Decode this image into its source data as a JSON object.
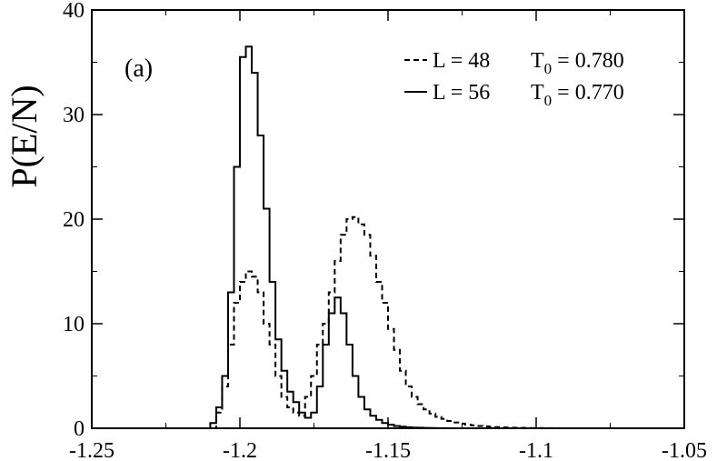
{
  "chart_data": {
    "type": "line",
    "step": true,
    "panel_label": "(a)",
    "ylabel": "P(E/N)",
    "xlabel": "",
    "xlim": [
      -1.25,
      -1.05
    ],
    "ylim": [
      0,
      40
    ],
    "xticks": [
      -1.25,
      -1.2,
      -1.15,
      -1.1,
      -1.05
    ],
    "xtick_labels": [
      "-1.25",
      "-1.2",
      "-1.15",
      "-1.1",
      "-1.05"
    ],
    "yticks": [
      0,
      10,
      20,
      30,
      40
    ],
    "ytick_labels": [
      "0",
      "10",
      "20",
      "30",
      "40"
    ],
    "grid": false,
    "legend_position": "top-right",
    "legend": [
      {
        "L": "L = 48",
        "T_base": "T",
        "T_sub": "0",
        "T_value": " = 0.780",
        "style": "dashed"
      },
      {
        "L": "L = 56",
        "T_base": "T",
        "T_sub": "0",
        "T_value": " = 0.770",
        "style": "solid"
      }
    ],
    "bin_width": 0.002,
    "series": [
      {
        "style": "dashed",
        "x_start": -1.212,
        "values": [
          0,
          0,
          1.5,
          4,
          8,
          12,
          14,
          15,
          14.5,
          13,
          10,
          8,
          5,
          3,
          2,
          1.5,
          1.2,
          3,
          5,
          8,
          10,
          13,
          16,
          18.5,
          20,
          20.2,
          19.5,
          18.5,
          16.5,
          14,
          12,
          9.5,
          7.5,
          5.5,
          4,
          3,
          2.3,
          1.8,
          1.4,
          1.1,
          0.9,
          0.7,
          0.55,
          0.45,
          0.35,
          0.28,
          0.22,
          0.18,
          0.14,
          0.11,
          0.09,
          0.07,
          0.05,
          0.04,
          0.03,
          0.02,
          0.02,
          0.01,
          0.01,
          0.01,
          0.005,
          0.005,
          0.005,
          0,
          0,
          0,
          0,
          0,
          0
        ],
        "stroke": "#000000"
      },
      {
        "style": "solid",
        "x_start": -1.212,
        "values": [
          0,
          0.5,
          2,
          5,
          13,
          25,
          35.5,
          36.5,
          34,
          28,
          21,
          14,
          8.5,
          5.5,
          3.5,
          2.5,
          1.5,
          1,
          1.5,
          4,
          8,
          11,
          12.5,
          11,
          8,
          5,
          3,
          1.8,
          1.2,
          0.8,
          0.5,
          0.35,
          0.22,
          0.15,
          0.1,
          0.07,
          0.05,
          0.03,
          0.02,
          0.01,
          0.01,
          0.005,
          0,
          0,
          0,
          0,
          0,
          0,
          0,
          0,
          0,
          0,
          0,
          0,
          0,
          0,
          0,
          0,
          0,
          0,
          0,
          0,
          0,
          0,
          0,
          0,
          0,
          0,
          0
        ],
        "stroke": "#000000"
      }
    ]
  }
}
